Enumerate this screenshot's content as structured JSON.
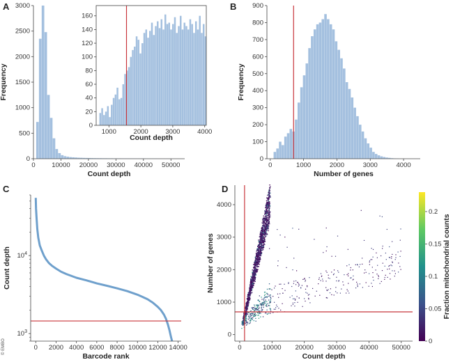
{
  "copyright": "© EMBO",
  "colors": {
    "bar": "#a4c0df",
    "line": "#6fa0cc",
    "threshold": "#c8343a",
    "axis": "#444444"
  },
  "chart_data": [
    {
      "panel": "A",
      "type": "bar",
      "xlabel": "Count depth",
      "ylabel": "Frequency",
      "xlim": [
        0,
        55000
      ],
      "ylim": [
        0,
        3000
      ],
      "xticks": [
        0,
        10000,
        20000,
        30000,
        40000,
        50000
      ],
      "yticks": [
        0,
        500,
        1000,
        1500,
        2000,
        2500,
        3000
      ],
      "bin_start": 1000,
      "bin_width": 1000,
      "values": [
        720,
        2350,
        3000,
        2480,
        1250,
        800,
        400,
        190,
        110,
        70,
        50,
        40,
        32,
        28,
        24,
        20,
        18,
        16,
        15,
        14,
        12,
        11,
        10,
        10,
        9,
        9,
        8,
        8,
        7,
        7,
        7,
        6,
        6,
        5,
        5,
        5,
        4,
        4,
        4,
        4,
        3,
        3,
        3,
        3,
        2,
        2,
        2,
        2,
        2,
        1,
        1,
        1,
        1
      ]
    },
    {
      "panel": "A-inset",
      "type": "bar",
      "xlabel": "Count depth",
      "ylabel": "",
      "xlim": [
        600,
        4050
      ],
      "ylim": [
        0,
        175
      ],
      "xticks": [
        1000,
        2000,
        3000,
        4000
      ],
      "yticks": [
        0,
        20,
        40,
        60,
        80,
        100,
        120,
        140,
        160
      ],
      "bin_start": 700,
      "bin_width": 60,
      "values": [
        18,
        25,
        15,
        20,
        28,
        12,
        30,
        40,
        45,
        55,
        38,
        40,
        60,
        75,
        80,
        85,
        100,
        110,
        115,
        130,
        125,
        105,
        120,
        135,
        140,
        128,
        138,
        150,
        132,
        145,
        152,
        142,
        155,
        140,
        162,
        148,
        150,
        140,
        148,
        158,
        135,
        145,
        160,
        140,
        150,
        145,
        140,
        155,
        148,
        135,
        152,
        140,
        160,
        135,
        148,
        130
      ],
      "threshold_x": 1550
    },
    {
      "panel": "B",
      "type": "bar",
      "xlabel": "Number of genes",
      "ylabel": "Frequency",
      "xlim": [
        -100,
        4500
      ],
      "ylim": [
        0,
        900
      ],
      "xticks": [
        0,
        1000,
        2000,
        3000,
        4000
      ],
      "yticks": [
        0,
        100,
        200,
        300,
        400,
        500,
        600,
        700,
        800,
        900
      ],
      "bin_start": 100,
      "bin_width": 80,
      "values": [
        40,
        60,
        100,
        80,
        130,
        150,
        175,
        160,
        230,
        330,
        420,
        490,
        560,
        650,
        720,
        760,
        790,
        800,
        820,
        850,
        820,
        790,
        760,
        690,
        640,
        590,
        530,
        450,
        410,
        360,
        300,
        250,
        200,
        160,
        120,
        90,
        65,
        40,
        28,
        20,
        14,
        10,
        7,
        5,
        3,
        2,
        1
      ],
      "threshold_x": 700
    },
    {
      "panel": "C",
      "type": "line",
      "xlabel": "Barcode rank",
      "ylabel": "Count depth",
      "yscale": "log",
      "xlim": [
        -500,
        14300
      ],
      "ylim": [
        800,
        60000
      ],
      "xticks": [
        0,
        2000,
        4000,
        6000,
        8000,
        10000,
        12000,
        14000
      ],
      "yticks": [
        1000,
        10000
      ],
      "x": [
        0,
        30,
        80,
        150,
        250,
        400,
        600,
        800,
        1000,
        1300,
        1600,
        2000,
        2500,
        3000,
        4000,
        5000,
        6000,
        7000,
        8000,
        9000,
        10000,
        10500,
        11000,
        11500,
        12000,
        12300,
        12600,
        12800,
        13000,
        13150,
        13300,
        13400
      ],
      "y": [
        55000,
        40000,
        30000,
        22000,
        17000,
        13500,
        11500,
        10000,
        9000,
        8000,
        7400,
        6800,
        6200,
        5800,
        5200,
        4800,
        4400,
        4100,
        3800,
        3500,
        3150,
        2950,
        2750,
        2500,
        2200,
        2000,
        1750,
        1550,
        1300,
        1100,
        900,
        700
      ],
      "threshold_y": 1450
    },
    {
      "panel": "D",
      "type": "scatter",
      "xlabel": "Count depth",
      "ylabel": "Number of genes",
      "xlim": [
        -1500,
        53500
      ],
      "ylim": [
        -200,
        4600
      ],
      "xticks": [
        0,
        10000,
        20000,
        30000,
        40000,
        50000
      ],
      "yticks": [
        0,
        1000,
        2000,
        3000,
        4000
      ],
      "threshold_x": 1500,
      "threshold_y": 700,
      "colorbar": {
        "label": "Fraction mitochondrial counts",
        "ticks": [
          0,
          0.05,
          0.1,
          0.15,
          0.2
        ],
        "range": [
          0,
          0.23
        ]
      }
    }
  ]
}
